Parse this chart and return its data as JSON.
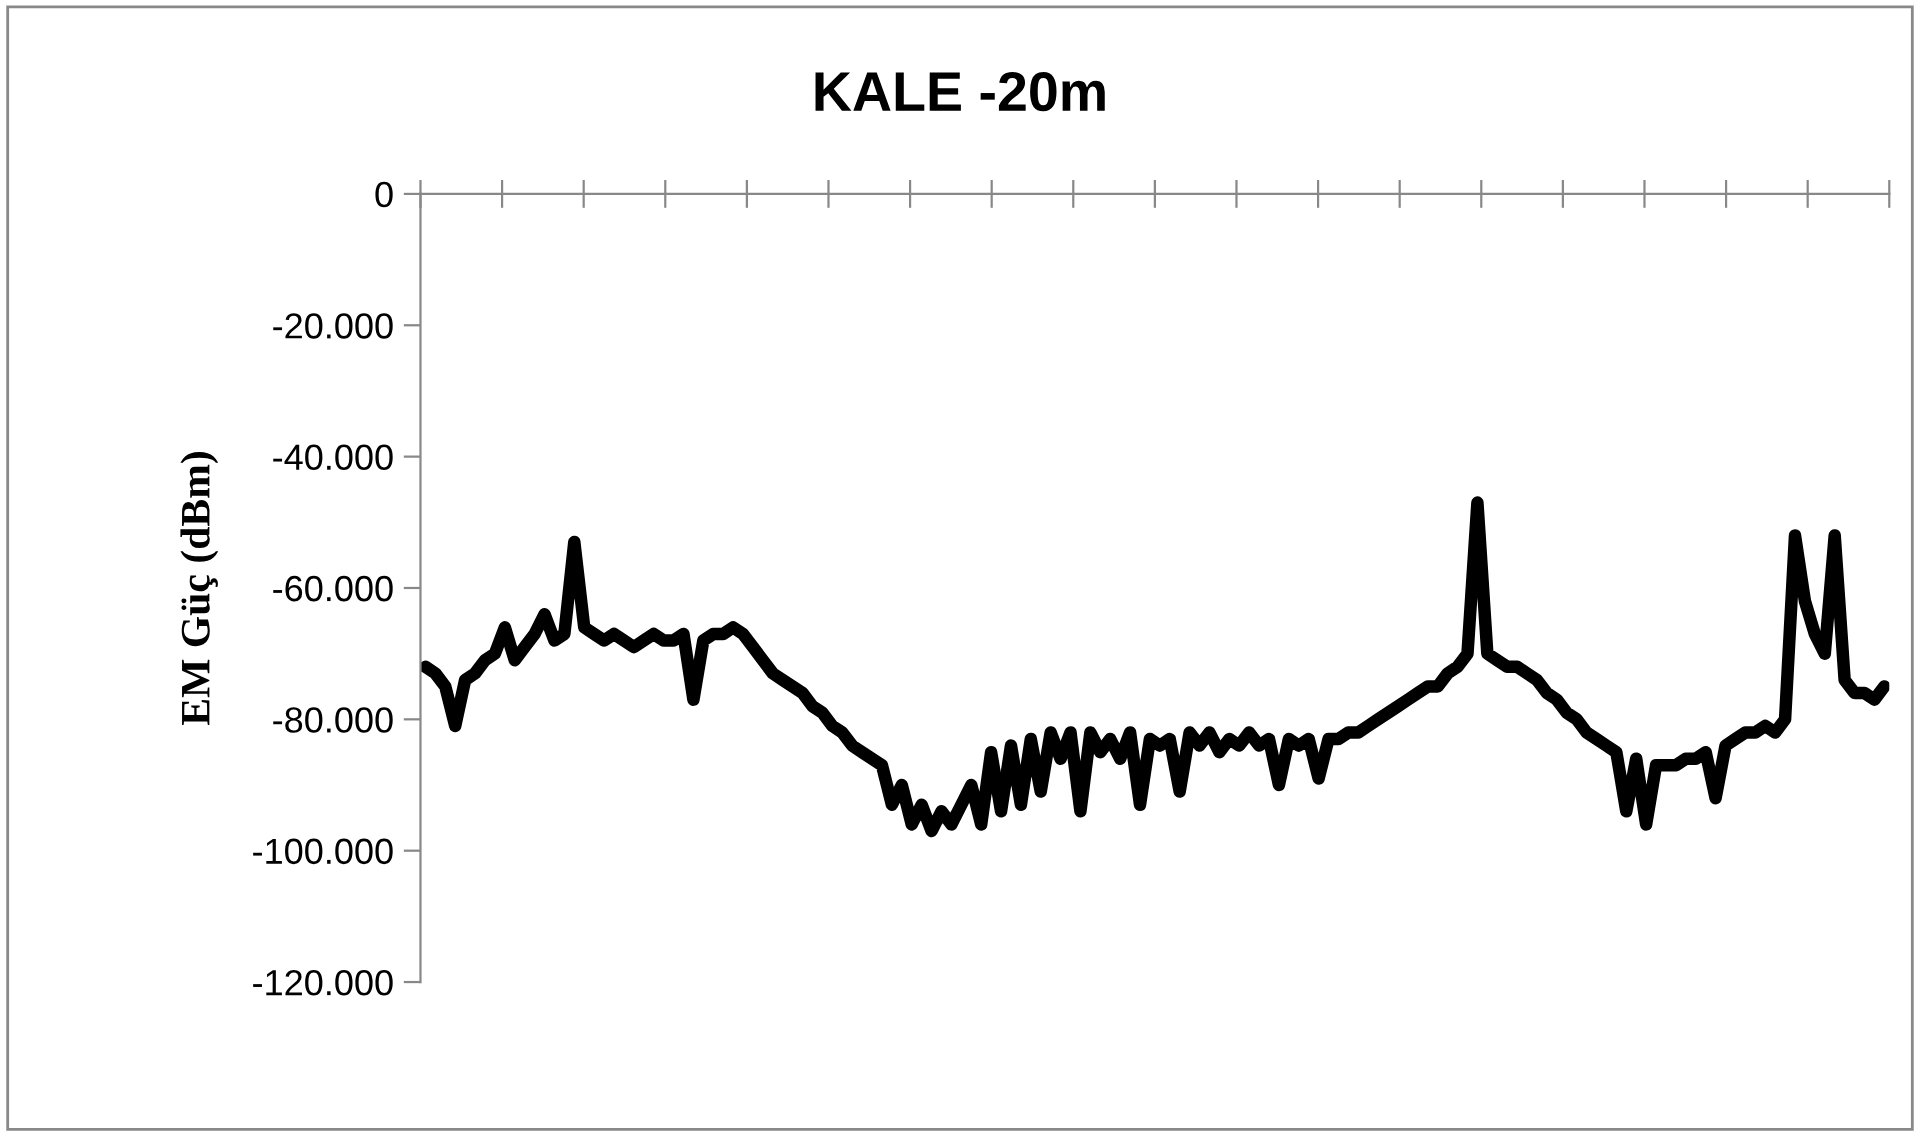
{
  "chart_data": {
    "type": "line",
    "title": "KALE -20m",
    "ylabel": "EM Güç (dBm)",
    "categories": [
      null,
      null,
      null,
      null,
      null,
      null,
      null,
      null,
      null,
      null,
      null,
      null,
      null,
      null,
      null,
      null,
      null,
      null,
      null,
      null,
      null,
      null,
      null,
      null,
      null,
      null,
      null,
      null,
      null,
      null,
      null,
      null,
      null,
      null,
      null,
      null,
      null,
      null,
      null,
      null,
      null,
      null,
      null,
      null,
      null,
      null,
      null,
      null,
      null,
      null,
      null,
      null,
      null,
      null,
      null,
      null,
      null,
      null,
      null,
      null,
      null,
      null,
      null,
      null,
      null,
      null,
      null,
      null,
      null,
      null,
      null,
      null,
      null,
      null,
      null,
      null,
      null,
      null,
      null,
      null,
      null,
      null,
      null,
      null,
      null,
      null,
      null,
      null,
      null,
      null,
      null,
      null,
      null,
      null,
      null,
      null,
      null,
      null,
      null,
      null,
      null,
      null,
      null,
      null,
      null,
      null,
      null,
      null,
      null,
      null,
      null,
      null,
      null,
      null,
      null,
      null,
      null,
      null,
      null,
      null,
      null,
      null,
      null,
      null,
      null,
      null,
      null,
      null,
      null,
      null,
      null,
      null,
      null,
      null,
      null,
      null,
      null,
      null,
      null,
      null,
      null,
      null,
      null,
      null,
      null,
      null,
      null,
      null
    ],
    "series": [
      {
        "color": "#000000",
        "values": [
          -72000,
          -73000,
          -75000,
          -81000,
          -74000,
          -73000,
          -71000,
          -70000,
          -66000,
          -71000,
          -69000,
          -67000,
          -64000,
          -68000,
          -67000,
          -53000,
          -66000,
          -67000,
          -68000,
          -67000,
          -68000,
          -69000,
          -68000,
          -67000,
          -68000,
          -68000,
          -67000,
          -77000,
          -68000,
          -67000,
          -67000,
          -66000,
          -67000,
          -69000,
          -71000,
          -73000,
          -74000,
          -75000,
          -76000,
          -78000,
          -79000,
          -81000,
          -82000,
          -84000,
          -85000,
          -86000,
          -87000,
          -93000,
          -90000,
          -96000,
          -93000,
          -97000,
          -94000,
          -96000,
          -93000,
          -90000,
          -96000,
          -85000,
          -94000,
          -84000,
          -93000,
          -83000,
          -91000,
          -82000,
          -86000,
          -82000,
          -94000,
          -82000,
          -85000,
          -83000,
          -86000,
          -82000,
          -93000,
          -83000,
          -84000,
          -83000,
          -91000,
          -82000,
          -84000,
          -82000,
          -85000,
          -83000,
          -84000,
          -82000,
          -84000,
          -83000,
          -90000,
          -83000,
          -84000,
          -83000,
          -89000,
          -83000,
          -83000,
          -82000,
          -82000,
          -81000,
          -80000,
          -79000,
          -78000,
          -77000,
          -76000,
          -75000,
          -75000,
          -73000,
          -72000,
          -70000,
          -47000,
          -70000,
          -71000,
          -72000,
          -72000,
          -73000,
          -74000,
          -76000,
          -77000,
          -79000,
          -80000,
          -82000,
          -83000,
          -84000,
          -85000,
          -94000,
          -86000,
          -96000,
          -87000,
          -87000,
          -87000,
          -86000,
          -86000,
          -85000,
          -92000,
          -84000,
          -83000,
          -82000,
          -82000,
          -81000,
          -82000,
          -80000,
          -52000,
          -62000,
          -67000,
          -70000,
          -52000,
          -74000,
          -76000,
          -76000,
          -77000,
          -75000
        ]
      }
    ],
    "ylim": [
      -120000,
      0
    ],
    "yticks": [
      {
        "value": -120000,
        "label": "-120.000"
      },
      {
        "value": -100000,
        "label": "-100.000"
      },
      {
        "value": -80000,
        "label": "-80.000"
      },
      {
        "value": -60000,
        "label": "-60.000"
      },
      {
        "value": -40000,
        "label": "-40.000"
      },
      {
        "value": -20000,
        "label": "-20.000"
      },
      0
    ],
    "tick_labels": "y",
    "grid": false,
    "marker": "none",
    "line_style": "solid"
  }
}
